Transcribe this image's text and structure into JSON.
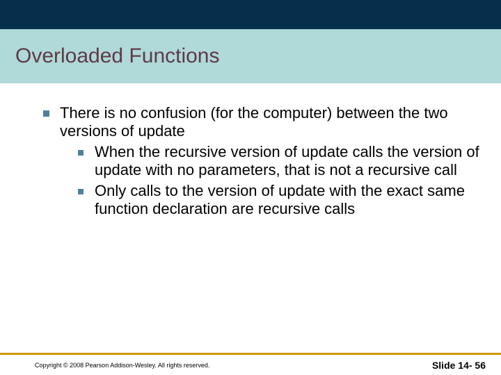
{
  "styling": {
    "top_band_color": "#052f4a",
    "header_bg_color": "#b0d9d9",
    "title_color": "#5e3a47",
    "divider_color": "#b5c4d4",
    "bullet_color": "#4d819b",
    "body_text_color": "#000000",
    "footer_border_color": "#cc9900",
    "title_fontsize": 30,
    "body_fontsize": 22,
    "copyright_fontsize": 9,
    "slide_number_fontsize": 14
  },
  "title": "Overloaded Functions",
  "main_text": "There is no confusion (for the computer) between the two versions of update",
  "sub_items": [
    "When the recursive version of update calls the version of update with no parameters, that is not a recursive call",
    "Only calls to the version of update with the exact same function declaration are recursive calls"
  ],
  "footer": {
    "copyright": "Copyright © 2008 Pearson Addison-Wesley. All rights reserved.",
    "slide_number": "Slide 14- 56"
  }
}
